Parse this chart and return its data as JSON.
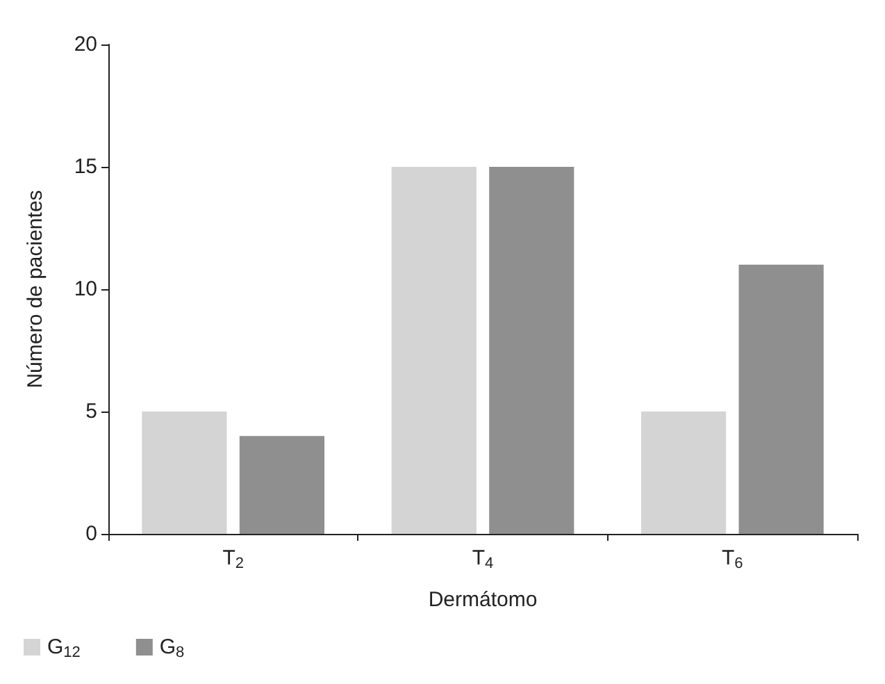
{
  "chart_data": {
    "type": "bar",
    "xlabel": "Dermátomo",
    "ylabel": "Número de pacientes",
    "categories": [
      "T$_{2}$",
      "T$_{4}$",
      "T$_{6}$"
    ],
    "series": [
      {
        "name": "G$_{12}$",
        "color": "#d4d4d4",
        "values": [
          5,
          15,
          5
        ]
      },
      {
        "name": "G$_{8}$",
        "color": "#8f8f8f",
        "values": [
          4,
          15,
          11
        ]
      }
    ],
    "ylim": [
      0,
      20
    ],
    "yticks": [
      0,
      5,
      10,
      15,
      20
    ],
    "grid": false,
    "legend": "bottom left"
  }
}
